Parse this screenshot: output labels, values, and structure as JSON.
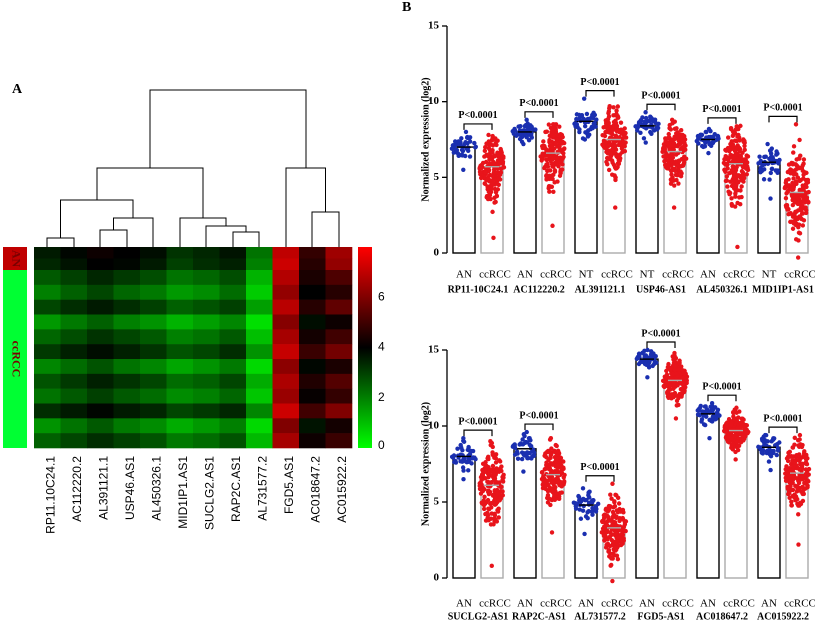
{
  "chart_data": [
    {
      "type": "heatmap",
      "panel": "A",
      "columns": [
        "RP11.10C24.1",
        "AC112220.2",
        "AL391121.1",
        "USP46.AS1",
        "AL450326.1",
        "MID1IP1.AS1",
        "SUCLG2.AS1",
        "RAP2C.AS1",
        "AL731577.2",
        "FGD5.AS1",
        "AC018647.2",
        "AC015922.2"
      ],
      "groups": [
        {
          "name": "AN",
          "color": "#c00000",
          "values": [
            [
              3.6,
              3.9,
              4.2,
              4.0,
              3.8,
              3.2,
              3.4,
              3.7,
              2.2,
              7.0,
              4.8,
              6.5
            ],
            [
              3.4,
              3.7,
              4.0,
              3.9,
              3.6,
              3.0,
              3.3,
              3.5,
              2.0,
              7.2,
              4.6,
              6.3
            ]
          ]
        },
        {
          "name": "ccRCC",
          "color": "#00ff33",
          "values": [
            [
              2.6,
              3.0,
              3.4,
              3.1,
              2.8,
              2.2,
              2.4,
              2.8,
              1.2,
              6.8,
              4.4,
              5.2
            ],
            [
              2.0,
              2.5,
              2.9,
              2.4,
              2.1,
              1.6,
              1.8,
              2.3,
              0.8,
              6.3,
              4.0,
              4.6
            ],
            [
              2.9,
              3.3,
              3.6,
              3.3,
              3.0,
              2.5,
              2.7,
              3.0,
              1.5,
              6.9,
              4.6,
              5.5
            ],
            [
              1.6,
              2.1,
              2.5,
              2.0,
              1.7,
              1.2,
              1.5,
              1.9,
              0.5,
              6.1,
              3.8,
              4.2
            ],
            [
              2.4,
              2.8,
              3.2,
              2.9,
              2.6,
              2.0,
              2.2,
              2.6,
              1.0,
              6.6,
              4.3,
              5.0
            ],
            [
              3.1,
              3.5,
              3.8,
              3.5,
              3.2,
              2.7,
              2.9,
              3.3,
              1.7,
              7.1,
              4.9,
              5.8
            ],
            [
              1.9,
              2.3,
              2.7,
              2.2,
              1.9,
              1.4,
              1.7,
              2.1,
              0.6,
              6.2,
              3.9,
              4.4
            ],
            [
              2.7,
              3.1,
              3.5,
              3.2,
              2.9,
              2.3,
              2.5,
              2.9,
              1.3,
              6.7,
              4.5,
              5.3
            ],
            [
              2.2,
              2.6,
              3.0,
              2.6,
              2.3,
              1.8,
              2.0,
              2.4,
              0.9,
              6.4,
              4.1,
              4.8
            ],
            [
              3.3,
              3.6,
              3.9,
              3.6,
              3.4,
              2.9,
              3.1,
              3.4,
              1.9,
              7.2,
              5.0,
              6.0
            ],
            [
              1.7,
              2.2,
              2.6,
              2.1,
              1.8,
              1.3,
              1.6,
              2.0,
              0.6,
              6.0,
              3.7,
              4.3
            ],
            [
              2.5,
              2.9,
              3.3,
              3.0,
              2.7,
              2.1,
              2.3,
              2.7,
              1.1,
              6.6,
              4.2,
              4.9
            ]
          ]
        }
      ],
      "colormap": [
        "#00ff00",
        "#000000",
        "#ff0000"
      ],
      "zlim": [
        0,
        8
      ],
      "zticks": [
        0,
        2,
        4,
        6
      ]
    },
    {
      "type": "dotbar",
      "panel": "B",
      "ylabel": "Normalized expression (log2)",
      "categories": [
        "RP11-10C24.1",
        "AC112220.2",
        "AL391121.1",
        "USP46-AS1",
        "AL450326.1",
        "MID1IP1-AS1"
      ],
      "group_labels": [
        [
          "AN",
          "ccRCC"
        ],
        [
          "AN",
          "ccRCC"
        ],
        [
          "NT",
          "ccRCC"
        ],
        [
          "NT",
          "ccRCC"
        ],
        [
          "AN",
          "ccRCC"
        ],
        [
          "NT",
          "ccRCC"
        ]
      ],
      "series": [
        {
          "color": "#1a2fb0",
          "edge": "#000000",
          "values": [
            7.0,
            8.0,
            8.7,
            8.4,
            7.5,
            6.0
          ],
          "min": [
            5.5,
            7.2,
            7.5,
            7.3,
            6.6,
            3.6
          ],
          "max": [
            8.0,
            8.8,
            10.2,
            9.3,
            8.2,
            7.2
          ]
        },
        {
          "color": "#e8141b",
          "edge": "#aaaaaa",
          "values": [
            5.7,
            6.6,
            7.5,
            6.7,
            5.9,
            4.0
          ],
          "min": [
            1.0,
            1.8,
            3.0,
            3.0,
            0.4,
            -0.3
          ],
          "max": [
            7.8,
            8.5,
            9.7,
            8.8,
            8.4,
            8.5
          ]
        }
      ],
      "p_labels": [
        "P<0.0001",
        "P<0.0001",
        "P<0.0001",
        "P<0.0001",
        "P<0.0001",
        "P<0.0001"
      ],
      "ylim": [
        0,
        15
      ],
      "yticks": [
        0,
        5,
        10,
        15
      ]
    },
    {
      "type": "dotbar",
      "ylabel": "Normalized expression (log2)",
      "categories": [
        "SUCLG2-AS1",
        "RAP2C-AS1",
        "AL731577.2",
        "FGD5-AS1",
        "AC018647.2",
        "AC015922.2"
      ],
      "group_labels": [
        [
          "AN",
          "ccRCC"
        ],
        [
          "AN",
          "ccRCC"
        ],
        [
          "AN",
          "ccRCC"
        ],
        [
          "AN",
          "ccRCC"
        ],
        [
          "AN",
          "ccRCC"
        ],
        [
          "AN",
          "ccRCC"
        ]
      ],
      "series": [
        {
          "color": "#1a2fb0",
          "edge": "#000000",
          "values": [
            8.0,
            8.5,
            4.8,
            14.4,
            10.8,
            8.6
          ],
          "min": [
            6.5,
            7.0,
            2.9,
            13.2,
            9.2,
            7.1
          ],
          "max": [
            9.2,
            9.6,
            5.9,
            15.0,
            11.5,
            9.4
          ]
        },
        {
          "color": "#e8141b",
          "edge": "#aaaaaa",
          "values": [
            6.1,
            6.8,
            3.3,
            13.0,
            9.7,
            6.9
          ],
          "min": [
            0.8,
            3.0,
            -0.2,
            10.5,
            7.8,
            2.2
          ],
          "max": [
            9.0,
            9.2,
            6.2,
            14.8,
            11.2,
            9.4
          ]
        }
      ],
      "p_labels": [
        "P<0.0001",
        "P<0.0001",
        "P<0.0001",
        "P<0.0001",
        "P<0.0001",
        "P<0.0001"
      ],
      "ylim": [
        0,
        15
      ],
      "yticks": [
        0,
        5,
        10,
        15
      ]
    }
  ]
}
